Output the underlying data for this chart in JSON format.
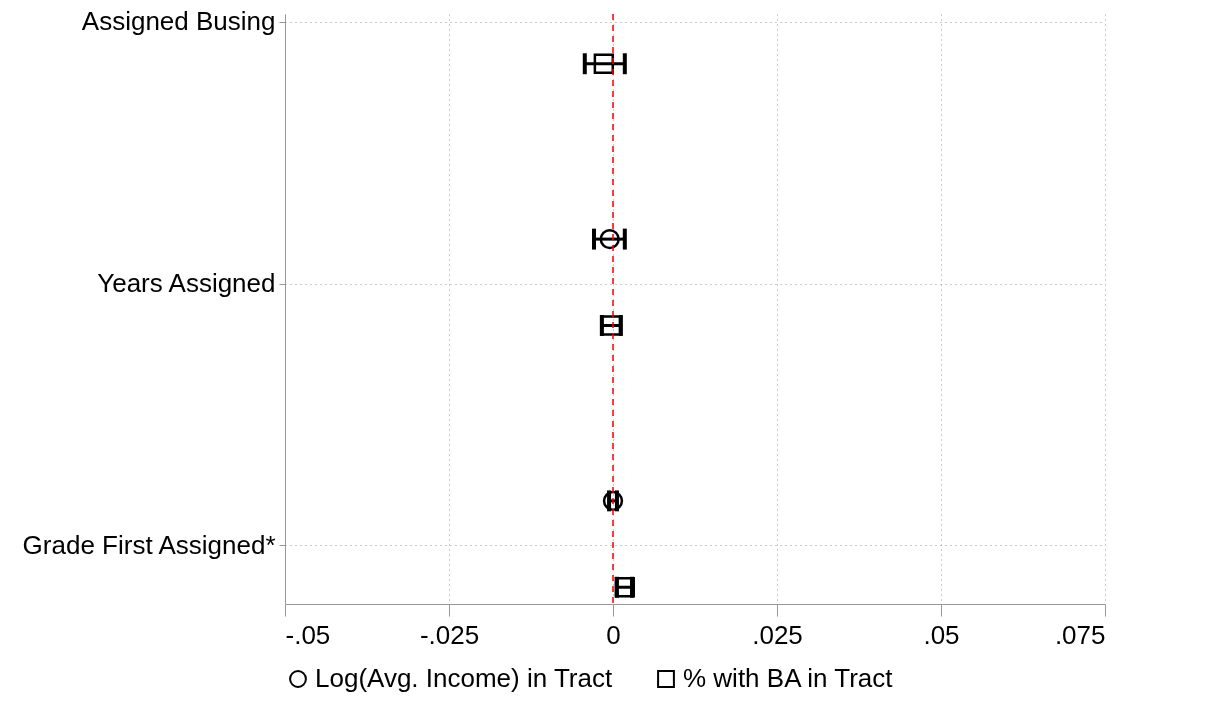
{
  "chart_data": {
    "type": "scatter",
    "orientation": "horizontal",
    "categories": [
      "Assigned Busing",
      "Years Assigned",
      "Grade First Assigned*"
    ],
    "series": [
      {
        "name": "Log(Avg. Income) in Tract",
        "color": "#000000",
        "marker": "circle",
        "values": [
          null,
          -0.0005,
          0.0
        ],
        "errors": [
          null,
          [
            -0.0029,
            0.0018
          ],
          [
            -0.0006,
            0.0006
          ]
        ]
      },
      {
        "name": "% with BA in Tract",
        "color": "#000000",
        "marker": "square",
        "values": [
          -0.0014,
          -0.0003,
          0.0018
        ],
        "errors": [
          [
            -0.0043,
            0.0018
          ],
          [
            -0.0017,
            0.0012
          ],
          [
            0.0006,
            0.0029
          ]
        ]
      }
    ],
    "xlim": [
      -0.05,
      0.075
    ],
    "xticks": [
      {
        "value": -0.05,
        "label": "-.05"
      },
      {
        "value": -0.025,
        "label": "-.025"
      },
      0,
      {
        "value": 0.025,
        "label": ".025"
      },
      {
        "value": 0.05,
        "label": ".05"
      },
      {
        "value": 0.075,
        "label": ".075"
      }
    ],
    "ref_lines": [
      {
        "axis": "x",
        "value": 0,
        "color": "#ff0000",
        "line_style": "dashed"
      }
    ],
    "grid": true,
    "legend": "bottom"
  }
}
